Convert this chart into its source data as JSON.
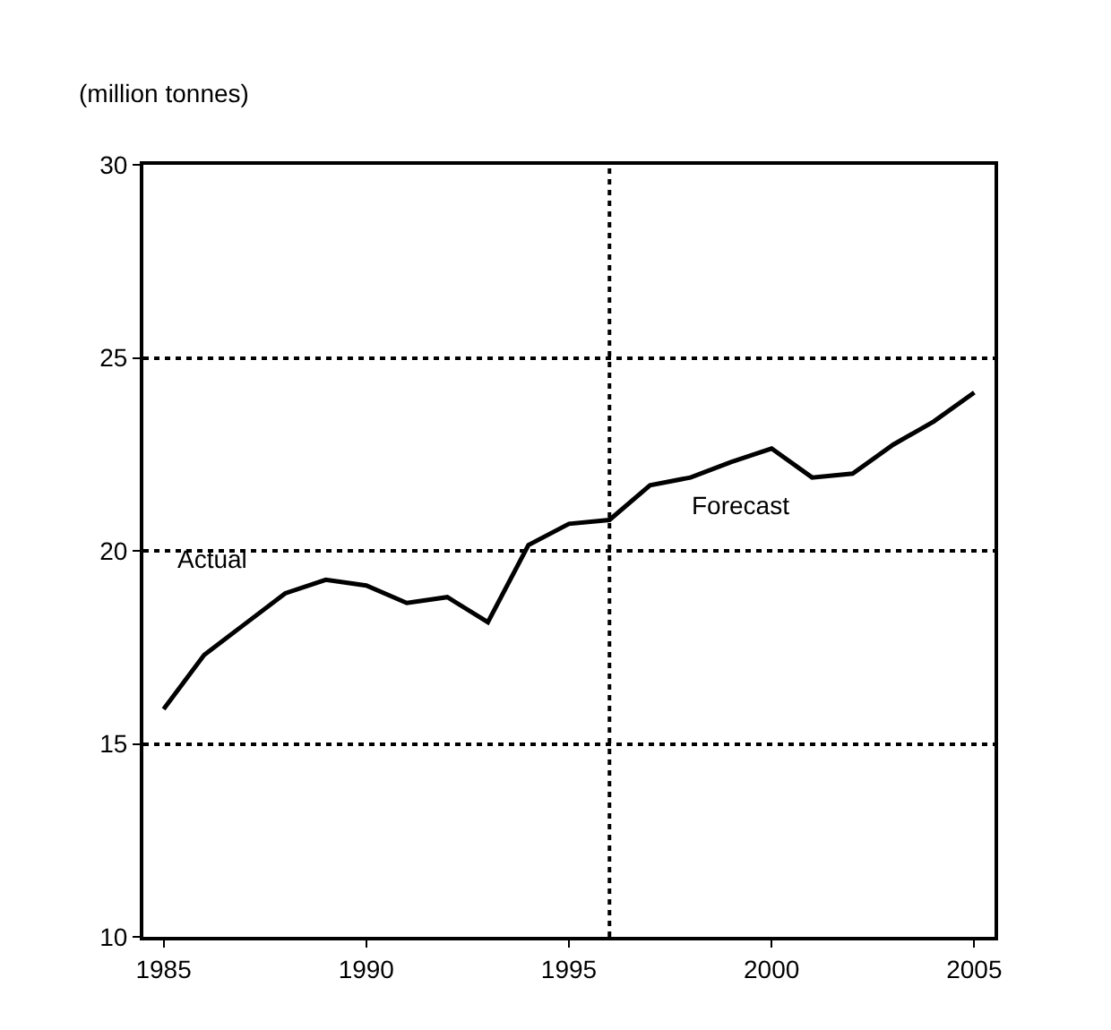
{
  "chart_data": {
    "type": "line",
    "ylabel": "(million tonnes)",
    "x": [
      1985,
      1986,
      1987,
      1988,
      1989,
      1990,
      1991,
      1992,
      1993,
      1994,
      1995,
      1996,
      1997,
      1998,
      1999,
      2000,
      2001,
      2002,
      2003,
      2004,
      2005
    ],
    "series": [
      {
        "color": "#000000",
        "values": [
          15.9,
          17.3,
          18.1,
          18.9,
          19.25,
          19.1,
          18.65,
          18.8,
          18.15,
          20.15,
          20.7,
          20.8,
          21.7,
          21.9,
          22.3,
          22.65,
          21.9,
          22.0,
          22.75,
          23.35,
          24.1
        ]
      }
    ],
    "xlim": [
      1984.5,
      2005.5
    ],
    "ylim": [
      10,
      30
    ],
    "xticks": [
      1985,
      1990,
      1995,
      2000,
      2005
    ],
    "yticks": [
      10,
      15,
      20,
      25,
      30
    ],
    "grid": "y",
    "marker": "none",
    "line_style": "solid",
    "ref_lines": [
      {
        "axis": "x",
        "value": 1996,
        "line_style": "dotted",
        "color": "#000000"
      }
    ],
    "annotations": [
      "Actual",
      "Forecast"
    ]
  }
}
